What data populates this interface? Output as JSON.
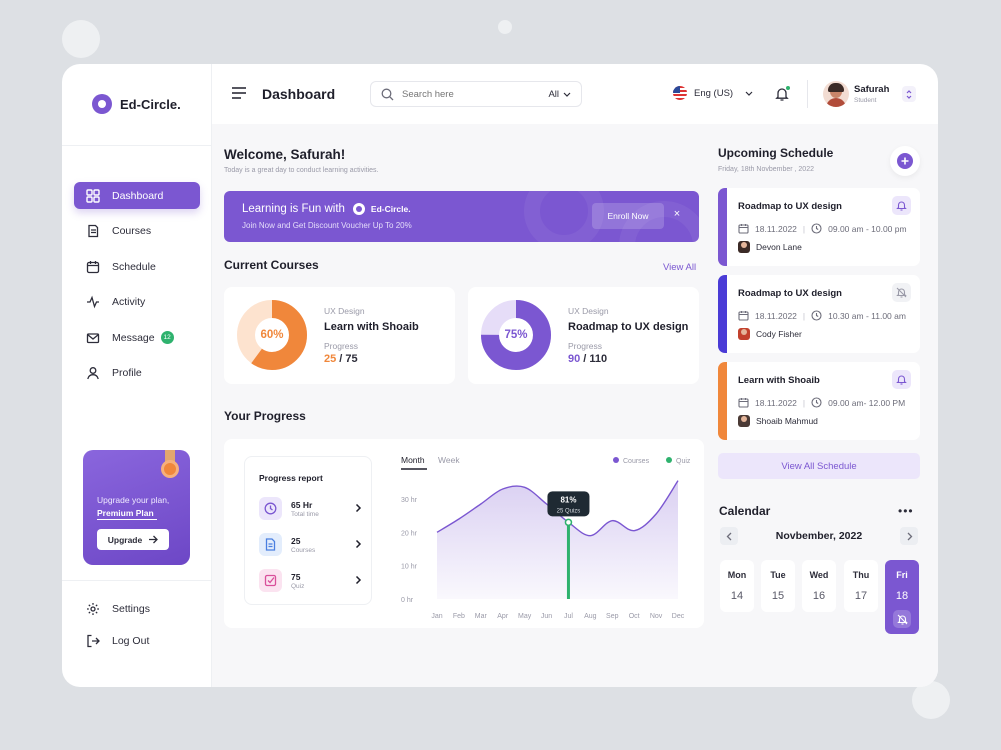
{
  "app": {
    "brand": "Ed-Circle.",
    "page_title": "Dashboard"
  },
  "header": {
    "search_placeholder": "Search here",
    "search_filter": "All",
    "language": "Eng (US)",
    "user_name": "Safurah",
    "user_role": "Student"
  },
  "sidebar": {
    "items": [
      {
        "label": "Dashboard",
        "icon": "grid-icon"
      },
      {
        "label": "Courses",
        "icon": "book-icon"
      },
      {
        "label": "Schedule",
        "icon": "calendar-icon"
      },
      {
        "label": "Activity",
        "icon": "activity-icon"
      },
      {
        "label": "Message",
        "icon": "mail-icon",
        "badge": "12"
      },
      {
        "label": "Profile",
        "icon": "user-icon"
      }
    ],
    "upgrade": {
      "line1": "Upgrade your plan,",
      "line2": "Premium Plan",
      "button": "Upgrade"
    },
    "bottom": [
      {
        "label": "Settings",
        "icon": "gear-icon"
      },
      {
        "label": "Log Out",
        "icon": "logout-icon"
      }
    ]
  },
  "welcome": {
    "title": "Welcome, Safurah!",
    "subtitle": "Today is a great day to conduct learning activities."
  },
  "banner": {
    "title": "Learning is Fun with",
    "brand": "Ed-Circle.",
    "subtitle": "Join Now and Get Discount  Voucher Up To 20%",
    "button": "Enroll Now",
    "close": "×"
  },
  "current_courses": {
    "title": "Current Courses",
    "view_all": "View All",
    "items": [
      {
        "percent_label": "60%",
        "percent": 0.6,
        "category": "UX Design",
        "name": "Learn with Shoaib",
        "progress_label": "Progress",
        "done": "25",
        "sep": " / ",
        "total": "75",
        "color": "#f0873b",
        "track": "#fde3cf"
      },
      {
        "percent_label": "75%",
        "percent": 0.75,
        "category": "UX Design",
        "name": "Roadmap to UX design",
        "progress_label": "Progress",
        "done": "90",
        "sep": " / ",
        "total": "110",
        "color": "#7b57d1",
        "track": "#e6ddf8"
      }
    ]
  },
  "progress": {
    "title": "Your Progress",
    "report_title": "Progress report",
    "rows": [
      {
        "value": "65 Hr",
        "label": "Total time",
        "icon": "clock-icon",
        "color": "#7b57d1",
        "bg": "#ece6fb"
      },
      {
        "value": "25",
        "label": "Courses",
        "icon": "document-icon",
        "color": "#4a7fe0",
        "bg": "#e3edfc"
      },
      {
        "value": "75",
        "label": "Quiz",
        "icon": "checkbox-icon",
        "color": "#d94f9a",
        "bg": "#fbe3f0"
      }
    ]
  },
  "chart_data": {
    "type": "area",
    "tabs": [
      "Month",
      "Week"
    ],
    "active_tab": "Month",
    "legend": [
      {
        "name": "Courses",
        "color": "#7b57d1"
      },
      {
        "name": "Quiz",
        "color": "#2fb26e"
      }
    ],
    "legend_position": "top-right",
    "categories": [
      "Jan",
      "Feb",
      "Mar",
      "Apr",
      "May",
      "Jun",
      "Jul",
      "Aug",
      "Sep",
      "Oct",
      "Nov",
      "Dec"
    ],
    "series": [
      {
        "name": "Courses",
        "values": [
          20,
          24,
          28.5,
          33,
          33.5,
          28.5,
          23,
          19,
          23.5,
          20.5,
          25.5,
          35.5
        ]
      }
    ],
    "y_ticks": [
      "0 hr",
      "10 hr",
      "20 hr",
      "30 hr"
    ],
    "ylim": [
      0,
      36
    ],
    "tooltip": {
      "category": "Jul",
      "value": "81%",
      "label": "25 Quizs"
    }
  },
  "schedule": {
    "title": "Upcoming Schedule",
    "date": "Friday, 18th Novbember , 2022",
    "items": [
      {
        "name": "Roadmap to UX design",
        "date": "18.11.2022",
        "time": "09.00 am - 10.00 pm",
        "person": "Devon Lane",
        "color": "#7b57d1",
        "bell": "bell-icon",
        "bell_bg": "#ece6fb",
        "bell_color": "#7b57d1"
      },
      {
        "name": "Roadmap to UX design",
        "date": "18.11.2022",
        "time": "10.30 am - 11.00 am",
        "person": "Cody Fisher",
        "color": "#4a3bd6",
        "bell": "bell-off-icon",
        "bell_bg": "#f1f2f5",
        "bell_color": "#9a9aa8"
      },
      {
        "name": "Learn with Shoaib",
        "date": "18.11.2022",
        "time": "09.00 am- 12.00 PM",
        "person": "Shoaib Mahmud",
        "color": "#f0873b",
        "bell": "bell-icon",
        "bell_bg": "#ece6fb",
        "bell_color": "#7b57d1"
      }
    ],
    "view_all": "View All Schedule"
  },
  "calendar": {
    "title": "Calendar",
    "more": "•••",
    "month": "Novbember, 2022",
    "days": [
      {
        "name": "Mon",
        "date": "14"
      },
      {
        "name": "Tue",
        "date": "15"
      },
      {
        "name": "Wed",
        "date": "16"
      },
      {
        "name": "Thu",
        "date": "17"
      },
      {
        "name": "Fri",
        "date": "18",
        "active": true
      }
    ]
  }
}
